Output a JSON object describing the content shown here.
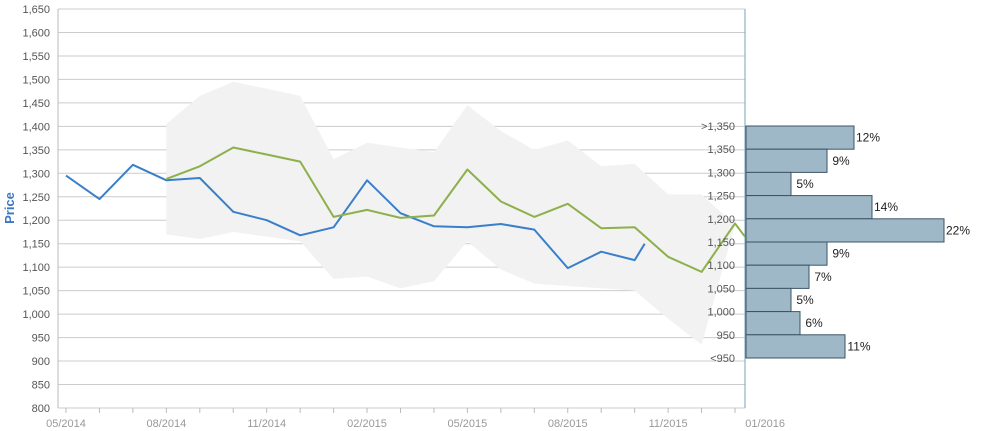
{
  "chart_data": {
    "type": "line",
    "ylabel": "Price",
    "ylim": [
      800,
      1650
    ],
    "y_ticks": [
      "800",
      "850",
      "900",
      "950",
      "1,000",
      "1,050",
      "1,100",
      "1,150",
      "1,200",
      "1,250",
      "1,300",
      "1,350",
      "1,400",
      "1,450",
      "1,500",
      "1,550",
      "1,600",
      "1,650"
    ],
    "x_ticks": [
      "05/2014",
      "08/2014",
      "11/2014",
      "02/2015",
      "05/2015",
      "08/2015",
      "11/2015",
      "01/2016"
    ],
    "colors": {
      "series_blue": "#3a7fc9",
      "series_green": "#8db04a",
      "band": "#f2f2f2",
      "histogram_fill": "#9fb8c7",
      "histogram_stroke": "#3b5566",
      "grid": "#cccccc",
      "axis_title": "#3a78c3"
    },
    "band": {
      "upper": [
        [
          3,
          1405
        ],
        [
          4,
          1465
        ],
        [
          5,
          1495
        ],
        [
          6,
          1480
        ],
        [
          7,
          1465
        ],
        [
          8,
          1330
        ],
        [
          9,
          1365
        ],
        [
          10,
          1355
        ],
        [
          11,
          1345
        ],
        [
          12,
          1445
        ],
        [
          13,
          1390
        ],
        [
          14,
          1350
        ],
        [
          15,
          1370
        ],
        [
          16,
          1315
        ],
        [
          17,
          1320
        ],
        [
          18,
          1255
        ],
        [
          19,
          1255
        ],
        [
          20,
          1190
        ]
      ],
      "lower": [
        [
          20,
          1190
        ],
        [
          19,
          935
        ],
        [
          18,
          990
        ],
        [
          17,
          1050
        ],
        [
          16,
          1055
        ],
        [
          15,
          1060
        ],
        [
          14,
          1065
        ],
        [
          13,
          1095
        ],
        [
          12,
          1155
        ],
        [
          11,
          1070
        ],
        [
          10,
          1055
        ],
        [
          9,
          1080
        ],
        [
          8,
          1075
        ],
        [
          7,
          1155
        ],
        [
          6,
          1165
        ],
        [
          5,
          1175
        ],
        [
          4,
          1160
        ],
        [
          3,
          1170
        ]
      ]
    },
    "series": [
      {
        "color": "#3a7fc9",
        "points": [
          [
            0,
            1295
          ],
          [
            1,
            1245
          ],
          [
            2,
            1318
          ],
          [
            3,
            1285
          ],
          [
            4,
            1290
          ],
          [
            5,
            1218
          ],
          [
            6,
            1200
          ],
          [
            7,
            1168
          ],
          [
            8,
            1185
          ],
          [
            9,
            1285
          ],
          [
            10,
            1215
          ],
          [
            11,
            1187
          ],
          [
            12,
            1185
          ],
          [
            13,
            1192
          ],
          [
            14,
            1180
          ],
          [
            15,
            1098
          ],
          [
            16,
            1133
          ],
          [
            17,
            1115
          ],
          [
            17.3,
            1150
          ]
        ]
      },
      {
        "color": "#8db04a",
        "points": [
          [
            3,
            1288
          ],
          [
            4,
            1315
          ],
          [
            5,
            1355
          ],
          [
            6,
            1340
          ],
          [
            7,
            1325
          ],
          [
            8,
            1207
          ],
          [
            9,
            1222
          ],
          [
            10,
            1205
          ],
          [
            11,
            1210
          ],
          [
            12,
            1308
          ],
          [
            13,
            1240
          ],
          [
            14,
            1207
          ],
          [
            15,
            1235
          ],
          [
            16,
            1183
          ],
          [
            17,
            1185
          ],
          [
            18,
            1122
          ],
          [
            19,
            1090
          ],
          [
            20,
            1193
          ],
          [
            20.3,
            1165
          ]
        ]
      }
    ],
    "histogram": {
      "bins": [
        {
          "label": ">1,350",
          "percent": "12%",
          "value": 12
        },
        {
          "label": "1,350",
          "percent": "9%",
          "value": 9
        },
        {
          "label": "1,300",
          "percent": "5%",
          "value": 5
        },
        {
          "label": "1,250",
          "percent": "14%",
          "value": 14
        },
        {
          "label": "1,200",
          "percent": "22%",
          "value": 22
        },
        {
          "label": "1,150",
          "percent": "9%",
          "value": 9
        },
        {
          "label": "1,100",
          "percent": "7%",
          "value": 7
        },
        {
          "label": "1,050",
          "percent": "5%",
          "value": 5
        },
        {
          "label": "1,000",
          "percent": "6%",
          "value": 6
        },
        {
          "label": "950",
          "percent": "11%",
          "value": 11
        },
        {
          "label": "<950",
          "percent": "",
          "value": 0
        }
      ]
    }
  }
}
